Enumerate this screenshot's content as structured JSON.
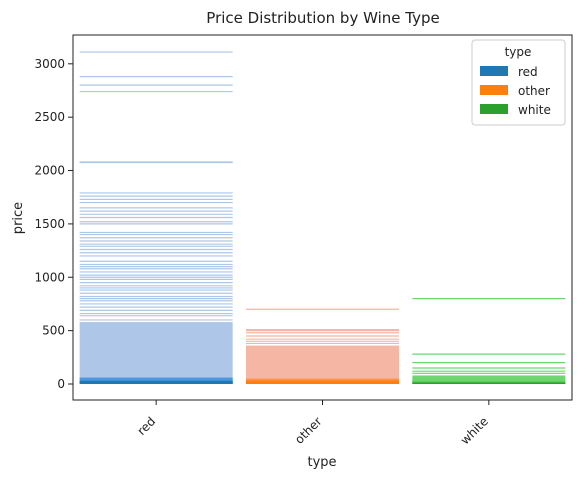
{
  "chart_data": {
    "type": "bar",
    "title": "Price Distribution by Wine Type",
    "xlabel": "type",
    "ylabel": "price",
    "categories": [
      "red",
      "other",
      "white"
    ],
    "ylim": [
      -150,
      3270
    ],
    "yticks": [
      0,
      500,
      1000,
      1500,
      2000,
      2500,
      3000
    ],
    "grid": false,
    "legend": {
      "title": "type",
      "placement": "top-right",
      "entries": [
        {
          "label": "red",
          "color": "#1f77b4"
        },
        {
          "label": "other",
          "color": "#ff7f0e"
        },
        {
          "label": "white",
          "color": "#2ca02c"
        }
      ]
    },
    "series": [
      {
        "category": "red",
        "color": "#1f77b4",
        "light_color": "#aec7e8",
        "mid_color": "#4a98e0",
        "dense_max": 580,
        "mid_max": 60,
        "core_max": 30,
        "prices": [
          600,
          640,
          660,
          690,
          720,
          750,
          780,
          800,
          820,
          850,
          880,
          900,
          920,
          950,
          980,
          1000,
          1020,
          1050,
          1080,
          1100,
          1120,
          1150,
          1200,
          1230,
          1260,
          1290,
          1310,
          1340,
          1370,
          1400,
          1420,
          1500,
          1520,
          1560,
          1590,
          1620,
          1650,
          1700,
          1730,
          1760,
          1790,
          2075,
          2080,
          2740,
          2800,
          2880,
          3110
        ]
      },
      {
        "category": "other",
        "color": "#ff7f0e",
        "light_color": "#f5b7a3",
        "mid_color": "#ff8f40",
        "dense_max": 360,
        "mid_max": 50,
        "core_max": 30,
        "prices": [
          380,
          400,
          420,
          450,
          480,
          500,
          510,
          700
        ]
      },
      {
        "category": "white",
        "color": "#2ca02c",
        "light_color": "#6fd66f",
        "mid_color": "#5ccf5c",
        "dense_max": 80,
        "mid_max": 30,
        "core_max": 15,
        "prices": [
          100,
          120,
          150,
          200,
          280,
          800
        ]
      }
    ]
  }
}
